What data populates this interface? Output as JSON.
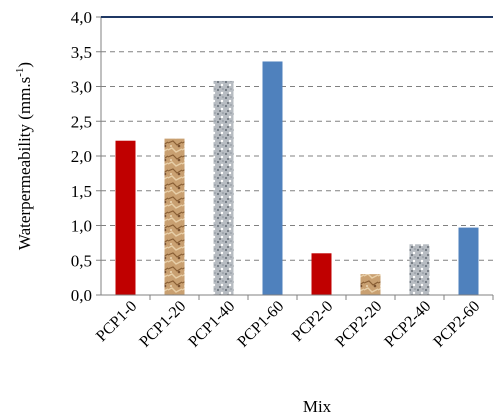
{
  "chart_data": {
    "type": "bar",
    "title": "",
    "xlabel": "Mix",
    "ylabel_main": "Waterpermeability (mm.s",
    "ylabel_sup": "-1",
    "ylabel_close": ")",
    "ylim": [
      0,
      4.0
    ],
    "yticks": [
      "0,0",
      "0,5",
      "1,0",
      "1,5",
      "2,0",
      "2,5",
      "3,0",
      "3,5",
      "4,0"
    ],
    "grid": true,
    "legend": "none",
    "categories": [
      "PCP1-0",
      "PCP1-20",
      "PCP1-40",
      "PCP1-60",
      "PCP2-0",
      "PCP2-20",
      "PCP2-40",
      "PCP2-60"
    ],
    "values": [
      2.22,
      2.25,
      3.08,
      3.36,
      0.6,
      0.3,
      0.73,
      0.97
    ],
    "fills": [
      "red",
      "sand",
      "gravel",
      "blue",
      "red",
      "sand",
      "gravel",
      "blue"
    ],
    "colors": {
      "red": "#c00000",
      "blue": "#4f81bd",
      "sand": "#c9a071",
      "gravel": "#b7bcc2",
      "top_border": "#1f3864",
      "grid": "#808080"
    }
  }
}
